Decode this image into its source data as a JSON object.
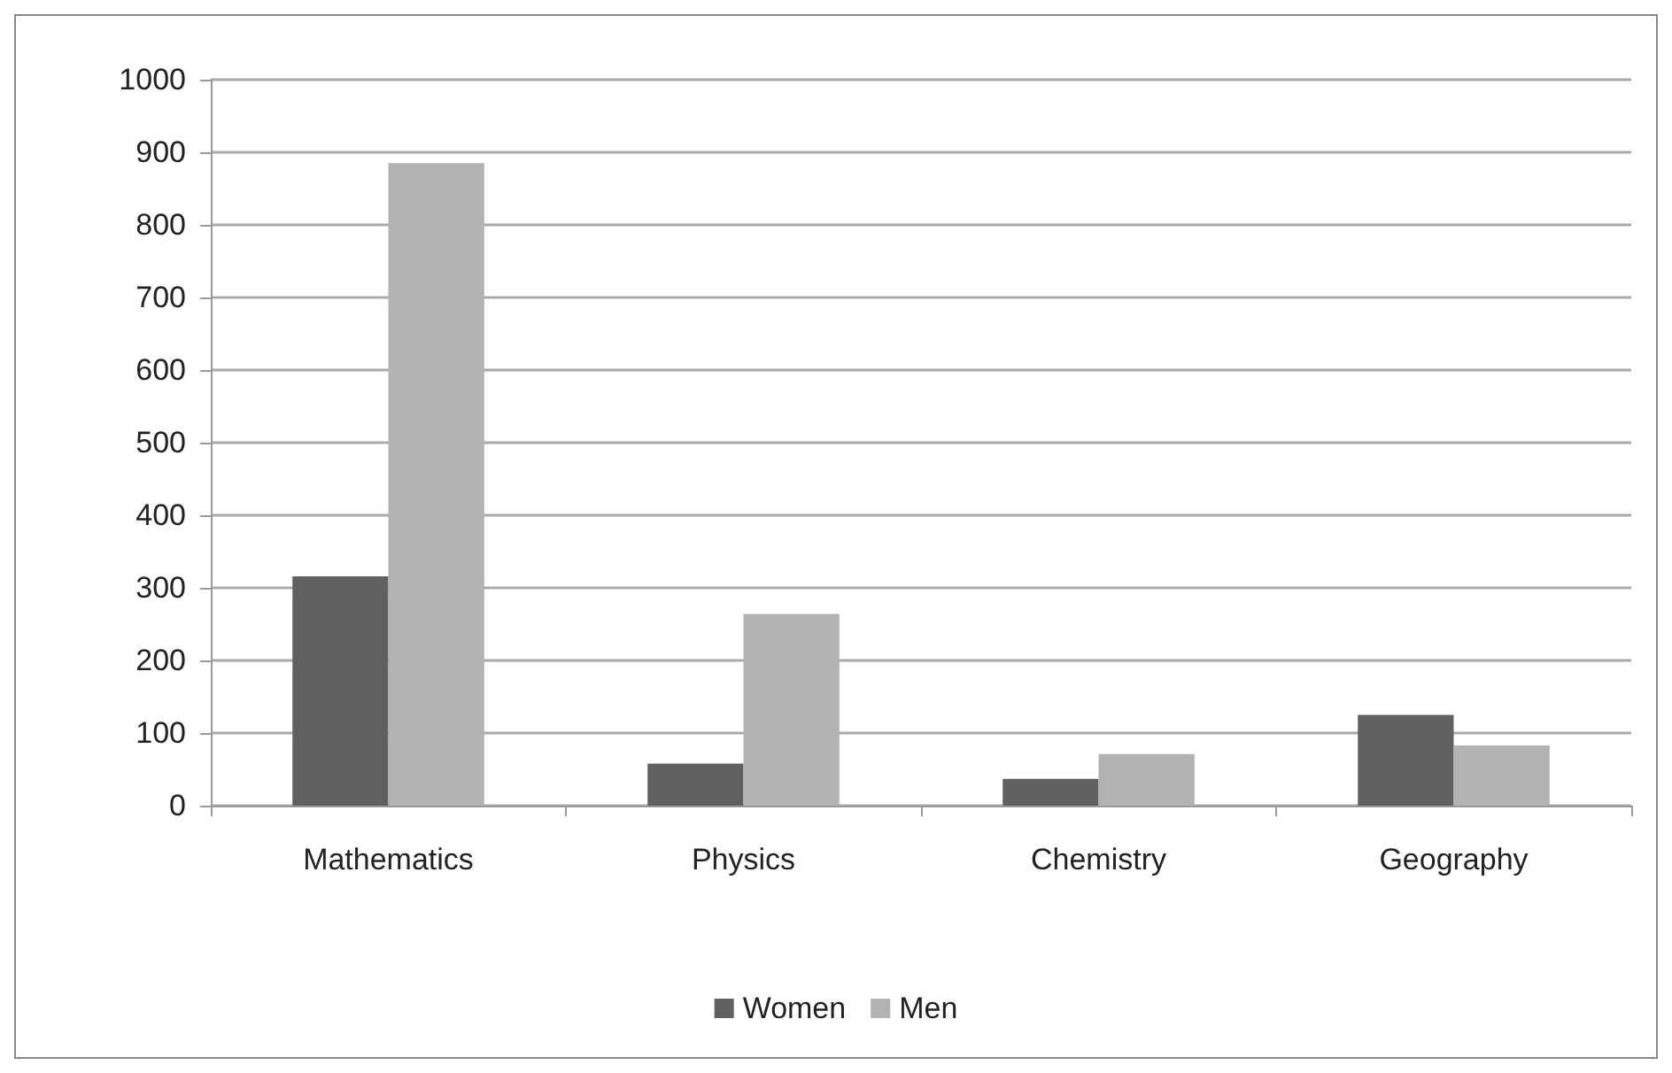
{
  "chart_data": {
    "type": "bar",
    "categories": [
      "Mathematics",
      "Physics",
      "Chemistry",
      "Geography"
    ],
    "series": [
      {
        "name": "Women",
        "color": "#606060",
        "values": [
          316,
          58,
          37,
          125
        ]
      },
      {
        "name": "Men",
        "color": "#b2b2b2",
        "values": [
          885,
          264,
          71,
          83
        ]
      }
    ],
    "ylim": [
      0,
      1000
    ],
    "yticks": [
      0,
      100,
      200,
      300,
      400,
      500,
      600,
      700,
      800,
      900,
      1000
    ],
    "grid": "y",
    "legend": "bottom"
  }
}
